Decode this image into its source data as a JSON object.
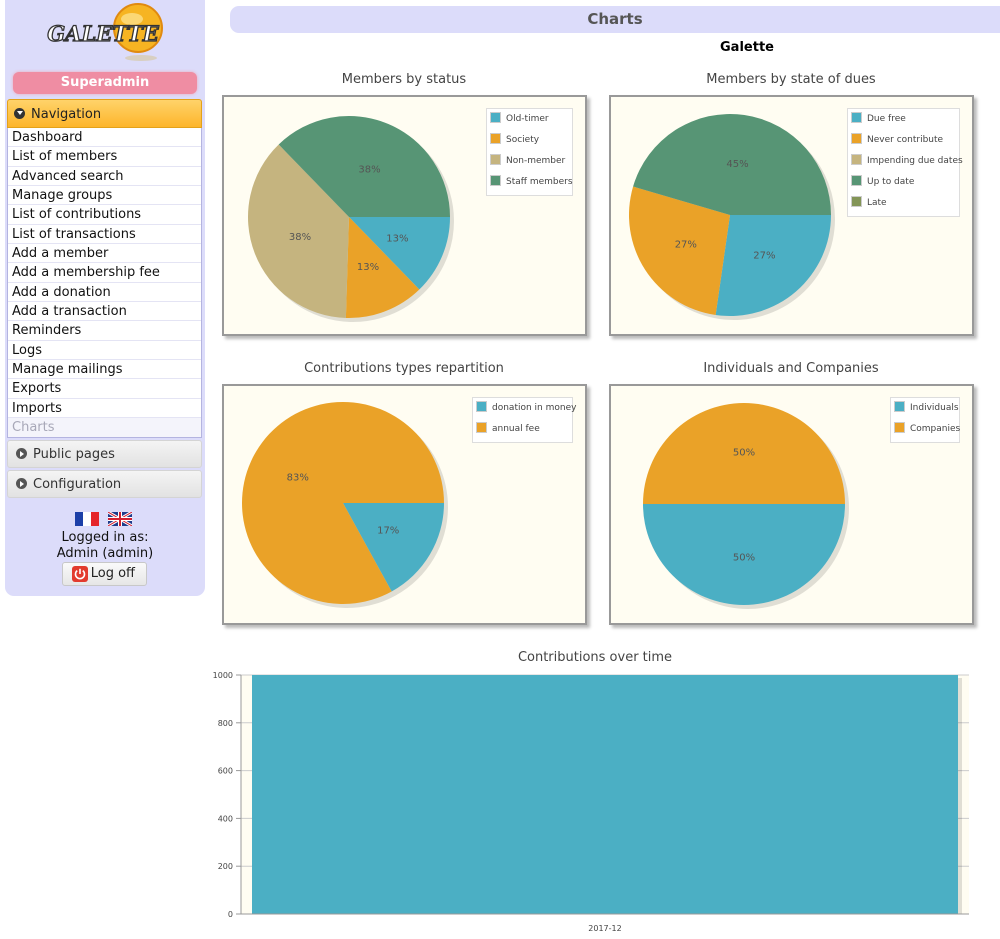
{
  "sidebar": {
    "logo_text": "GALETTE",
    "role": "Superadmin",
    "navigation_label": "Navigation",
    "items": [
      {
        "label": "Dashboard",
        "name": "dashboard"
      },
      {
        "label": "List of members",
        "name": "list-of-members"
      },
      {
        "label": "Advanced search",
        "name": "advanced-search"
      },
      {
        "label": "Manage groups",
        "name": "manage-groups"
      },
      {
        "label": "List of contributions",
        "name": "list-of-contributions"
      },
      {
        "label": "List of transactions",
        "name": "list-of-transactions"
      },
      {
        "label": "Add a member",
        "name": "add-a-member"
      },
      {
        "label": "Add a membership fee",
        "name": "add-a-membership-fee"
      },
      {
        "label": "Add a donation",
        "name": "add-a-donation"
      },
      {
        "label": "Add a transaction",
        "name": "add-a-transaction"
      },
      {
        "label": "Reminders",
        "name": "reminders"
      },
      {
        "label": "Logs",
        "name": "logs"
      },
      {
        "label": "Manage mailings",
        "name": "manage-mailings"
      },
      {
        "label": "Exports",
        "name": "exports"
      },
      {
        "label": "Imports",
        "name": "imports"
      },
      {
        "label": "Charts",
        "name": "charts",
        "current": true
      }
    ],
    "public_pages_label": "Public pages",
    "configuration_label": "Configuration",
    "logged_in_line1": "Logged in as:",
    "logged_in_line2": "Admin (admin)",
    "logoff_label": "Log off",
    "icons": [
      "chevron-down-icon",
      "chevron-right-icon",
      "french-flag-icon",
      "uk-flag-icon",
      "power-icon"
    ]
  },
  "header": {
    "title": "Charts",
    "subtitle": "Galette"
  },
  "colors": {
    "teal": "#4bafc4",
    "orange": "#eaa228",
    "tan": "#c5b47f",
    "green": "#579575",
    "olive": "#839557",
    "sidebar_bg": "#dcdcfa",
    "role_bg": "#ef8da3"
  },
  "chart_data": [
    {
      "type": "pie",
      "title": "Members by status",
      "categories": [
        "Old-timer",
        "Society",
        "Non-member",
        "Staff members"
      ],
      "values": [
        13,
        13,
        38,
        38
      ],
      "labels": [
        "13%",
        "13%",
        "38%",
        "38%"
      ],
      "colors": [
        "#4bafc4",
        "#eaa228",
        "#c5b47f",
        "#579575"
      ],
      "legend": "top-right"
    },
    {
      "type": "pie",
      "title": "Members by state of dues",
      "categories": [
        "Due free",
        "Never contribute",
        "Impending due dates",
        "Up to date",
        "Late"
      ],
      "values": [
        27,
        27,
        0,
        45,
        0
      ],
      "labels": [
        "27%",
        "27%",
        "",
        "45%",
        ""
      ],
      "colors": [
        "#4bafc4",
        "#eaa228",
        "#c5b47f",
        "#579575",
        "#839557"
      ],
      "legend": "top-right"
    },
    {
      "type": "pie",
      "title": "Contributions types repartition",
      "categories": [
        "donation in money",
        "annual fee"
      ],
      "values": [
        17,
        83
      ],
      "labels": [
        "17%",
        "83%"
      ],
      "colors": [
        "#4bafc4",
        "#eaa228"
      ],
      "legend": "top-right"
    },
    {
      "type": "pie",
      "title": "Individuals and Companies",
      "categories": [
        "Individuals",
        "Companies"
      ],
      "values": [
        50,
        50
      ],
      "labels": [
        "50%",
        "50%"
      ],
      "colors": [
        "#4bafc4",
        "#eaa228"
      ],
      "legend": "top-right"
    },
    {
      "type": "bar",
      "title": "Contributions over time",
      "categories": [
        "2017-12"
      ],
      "values": [
        1000
      ],
      "ylim": [
        0,
        1000
      ],
      "yticks": [
        0,
        200,
        400,
        600,
        800,
        1000
      ],
      "color": "#4bafc4",
      "grid": true
    }
  ]
}
